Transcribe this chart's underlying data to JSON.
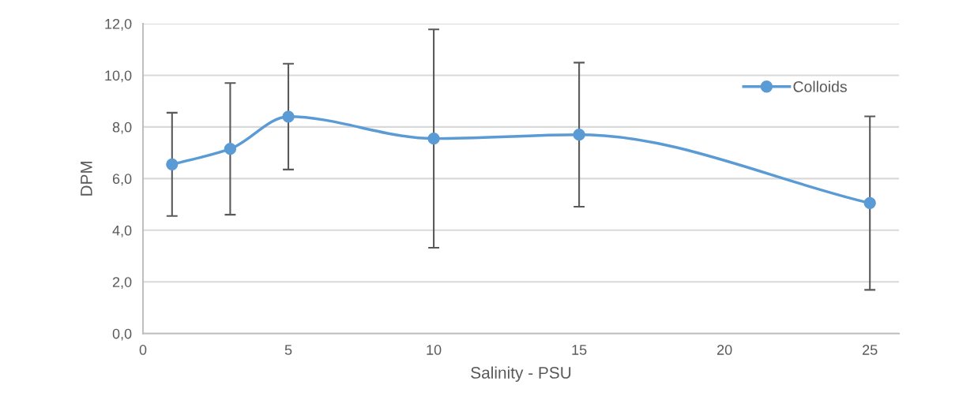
{
  "chart_data": {
    "type": "line",
    "xlabel": "Salinity - PSU",
    "ylabel": "DPM",
    "x": [
      1,
      3,
      5,
      10,
      15,
      25
    ],
    "series": [
      {
        "name": "Colloids",
        "color": "#5b9bd5",
        "values": [
          6.55,
          7.15,
          8.4,
          7.55,
          7.7,
          5.05
        ],
        "errors": [
          2.0,
          2.55,
          2.05,
          4.23,
          2.79,
          3.36
        ]
      }
    ],
    "xlim": [
      0,
      26
    ],
    "xticks": [
      0,
      5,
      10,
      15,
      20,
      25
    ],
    "ylim": [
      0,
      12
    ],
    "yticks": [
      {
        "value": 0,
        "label": "0,0"
      },
      {
        "value": 2,
        "label": "2,0"
      },
      {
        "value": 4,
        "label": "4,0"
      },
      {
        "value": 6,
        "label": "6,0"
      },
      {
        "value": 8,
        "label": "8,0"
      },
      {
        "value": 10,
        "label": "10,0"
      },
      {
        "value": 12,
        "label": "12,0"
      }
    ],
    "grid": "y",
    "legend": "top right",
    "marker": "circle",
    "line_style": "solid"
  }
}
